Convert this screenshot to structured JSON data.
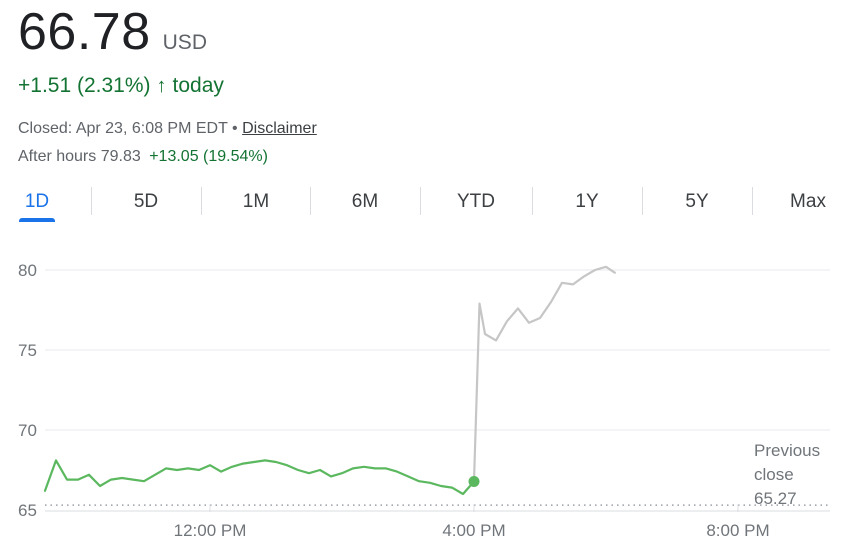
{
  "quote": {
    "price": "66.78",
    "currency": "USD",
    "change": "+1.51 (2.31%)",
    "arrow": "↑",
    "change_suffix": "today",
    "closed_text": "Closed: Apr 23, 6:08 PM EDT",
    "separator": "•",
    "disclaimer": "Disclaimer",
    "after_hours_label": "After hours 79.83",
    "after_hours_change": "+13.05 (19.54%)"
  },
  "tabs": [
    "1D",
    "5D",
    "1M",
    "6M",
    "YTD",
    "1Y",
    "5Y",
    "Max"
  ],
  "active_tab": "1D",
  "colors": {
    "up": "#137333",
    "line_up": "#5bb85f",
    "after_hours": "#c6c6c6",
    "accent": "#1a73e8"
  },
  "chart_data": {
    "type": "line",
    "ylim": [
      65,
      81
    ],
    "y_ticks": [
      "80",
      "75",
      "70",
      "65"
    ],
    "x_ticks": [
      "12:00 PM",
      "4:00 PM",
      "8:00 PM"
    ],
    "previous_close": {
      "label_lines": [
        "Previous",
        "close",
        "65.27"
      ],
      "value": 65.27
    },
    "series": [
      {
        "x": [
          "9:30",
          "9:40",
          "9:50",
          "10:00",
          "10:10",
          "10:20",
          "10:30",
          "10:40",
          "10:50",
          "11:00",
          "11:10",
          "11:20",
          "11:30",
          "11:40",
          "11:50",
          "12:00",
          "12:10",
          "12:20",
          "12:30",
          "12:40",
          "12:50",
          "1:00",
          "1:10",
          "1:20",
          "1:30",
          "1:40",
          "1:50",
          "2:00",
          "2:10",
          "2:20",
          "2:30",
          "2:40",
          "2:50",
          "3:00",
          "3:10",
          "3:20",
          "3:30",
          "3:40",
          "3:50",
          "4:00"
        ],
        "values": [
          66.2,
          68.1,
          66.9,
          66.9,
          67.2,
          66.5,
          66.9,
          67.0,
          66.9,
          66.8,
          67.2,
          67.6,
          67.5,
          67.6,
          67.5,
          67.8,
          67.4,
          67.7,
          67.9,
          68.0,
          68.1,
          68.0,
          67.8,
          67.5,
          67.3,
          67.5,
          67.1,
          67.3,
          67.6,
          67.7,
          67.6,
          67.6,
          67.4,
          67.1,
          66.8,
          66.7,
          66.5,
          66.4,
          66.0,
          66.78
        ]
      },
      {
        "x": [
          "4:00",
          "4:05",
          "4:10",
          "4:20",
          "4:30",
          "4:40",
          "4:50",
          "5:00",
          "5:10",
          "5:20",
          "5:30",
          "5:40",
          "5:50",
          "6:00",
          "6:08"
        ],
        "values": [
          66.78,
          77.9,
          76.0,
          75.6,
          76.8,
          77.6,
          76.7,
          77.0,
          78.0,
          79.2,
          79.1,
          79.6,
          80.0,
          80.2,
          79.83
        ]
      }
    ]
  }
}
